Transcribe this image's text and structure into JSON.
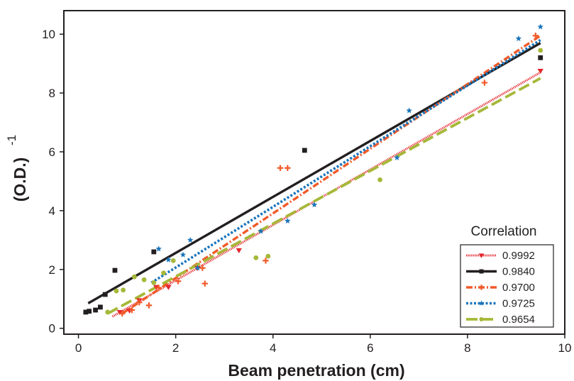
{
  "chart_data": {
    "type": "scatter",
    "title": "",
    "xlabel": "Beam penetration (cm)",
    "ylabel": "(O.D.)",
    "ylabel_superscript": "-1",
    "xlim": [
      -0.3,
      10
    ],
    "ylim": [
      -0.2,
      10.8
    ],
    "xticks": [
      0,
      2,
      4,
      6,
      8,
      10
    ],
    "yticks": [
      0,
      2,
      4,
      6,
      8,
      10
    ],
    "grid": false,
    "legend_title": "Correlation",
    "legend_position": "bottom-right",
    "series": [
      {
        "name": "0.9992",
        "color": "#e4262d",
        "marker": "triangle-down",
        "line_style": "dotted-thick",
        "fit": [
          [
            0.7,
            0.4
          ],
          [
            9.5,
            8.7
          ]
        ],
        "points": [
          [
            0.85,
            0.55
          ],
          [
            1.05,
            0.6
          ],
          [
            1.25,
            0.95
          ],
          [
            1.6,
            1.4
          ],
          [
            1.85,
            1.4
          ],
          [
            2.45,
            2.05
          ],
          [
            3.3,
            2.65
          ],
          [
            9.5,
            8.75
          ]
        ]
      },
      {
        "name": "0.9840",
        "color": "#231f20",
        "marker": "square",
        "line_style": "solid",
        "fit": [
          [
            0.2,
            0.85
          ],
          [
            9.5,
            9.7
          ]
        ],
        "points": [
          [
            0.15,
            0.55
          ],
          [
            0.22,
            0.58
          ],
          [
            0.35,
            0.62
          ],
          [
            0.45,
            0.72
          ],
          [
            0.55,
            1.15
          ],
          [
            0.75,
            1.97
          ],
          [
            1.55,
            2.6
          ],
          [
            4.65,
            6.05
          ],
          [
            9.5,
            9.2
          ]
        ]
      },
      {
        "name": "0.9700",
        "color": "#f15a29",
        "marker": "plus",
        "line_style": "dash-dot",
        "fit": [
          [
            0.9,
            0.5
          ],
          [
            9.5,
            9.95
          ]
        ],
        "points": [
          [
            0.9,
            0.5
          ],
          [
            1.1,
            0.62
          ],
          [
            1.25,
            0.88
          ],
          [
            1.45,
            0.78
          ],
          [
            1.65,
            1.38
          ],
          [
            2.05,
            1.6
          ],
          [
            2.55,
            2.05
          ],
          [
            2.6,
            1.52
          ],
          [
            3.85,
            2.3
          ],
          [
            4.15,
            5.45
          ],
          [
            4.3,
            5.45
          ],
          [
            8.35,
            8.35
          ],
          [
            9.4,
            9.95
          ]
        ]
      },
      {
        "name": "0.9725",
        "color": "#1b75bc",
        "marker": "star",
        "line_style": "dotted",
        "fit": [
          [
            1.5,
            1.55
          ],
          [
            9.5,
            9.8
          ]
        ],
        "points": [
          [
            1.65,
            2.7
          ],
          [
            1.85,
            2.33
          ],
          [
            2.15,
            2.5
          ],
          [
            2.3,
            3.0
          ],
          [
            2.45,
            2.05
          ],
          [
            3.75,
            3.3
          ],
          [
            4.3,
            3.65
          ],
          [
            4.85,
            4.2
          ],
          [
            6.55,
            5.8
          ],
          [
            6.8,
            7.4
          ],
          [
            9.05,
            9.85
          ],
          [
            9.5,
            10.25
          ]
        ]
      },
      {
        "name": "0.9654",
        "color": "#a6b838",
        "marker": "circle",
        "line_style": "long-dash",
        "fit": [
          [
            0.6,
            0.5
          ],
          [
            9.5,
            8.5
          ]
        ],
        "points": [
          [
            0.6,
            0.55
          ],
          [
            0.78,
            1.27
          ],
          [
            0.92,
            1.3
          ],
          [
            1.15,
            1.75
          ],
          [
            1.35,
            1.65
          ],
          [
            1.55,
            1.55
          ],
          [
            1.75,
            1.88
          ],
          [
            1.95,
            2.3
          ],
          [
            3.65,
            2.4
          ],
          [
            3.9,
            2.45
          ],
          [
            6.2,
            5.05
          ],
          [
            9.5,
            9.45
          ]
        ]
      }
    ]
  }
}
